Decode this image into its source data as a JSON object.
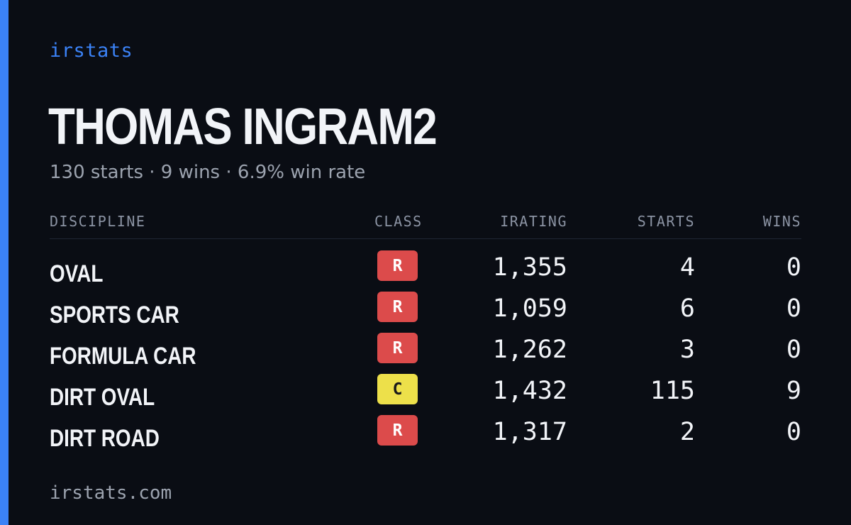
{
  "brand": "irstats",
  "driver": {
    "name": "THOMAS INGRAM2",
    "summary": "130 starts · 9 wins · 6.9% win rate"
  },
  "table": {
    "headers": {
      "discipline": "DISCIPLINE",
      "class": "CLASS",
      "irating": "IRATING",
      "starts": "STARTS",
      "wins": "WINS"
    },
    "rows": [
      {
        "discipline": "OVAL",
        "class": "R",
        "irating": "1,355",
        "starts": "4",
        "wins": "0"
      },
      {
        "discipline": "SPORTS CAR",
        "class": "R",
        "irating": "1,059",
        "starts": "6",
        "wins": "0"
      },
      {
        "discipline": "FORMULA CAR",
        "class": "R",
        "irating": "1,262",
        "starts": "3",
        "wins": "0"
      },
      {
        "discipline": "DIRT OVAL",
        "class": "C",
        "irating": "1,432",
        "starts": "115",
        "wins": "9"
      },
      {
        "discipline": "DIRT ROAD",
        "class": "R",
        "irating": "1,317",
        "starts": "2",
        "wins": "0"
      }
    ]
  },
  "footer": {
    "url": "irstats.com"
  },
  "colors": {
    "accent": "#3b82f6",
    "background": "#0a0d14",
    "class_R": "#dc4b4b",
    "class_C": "#ede04a"
  }
}
